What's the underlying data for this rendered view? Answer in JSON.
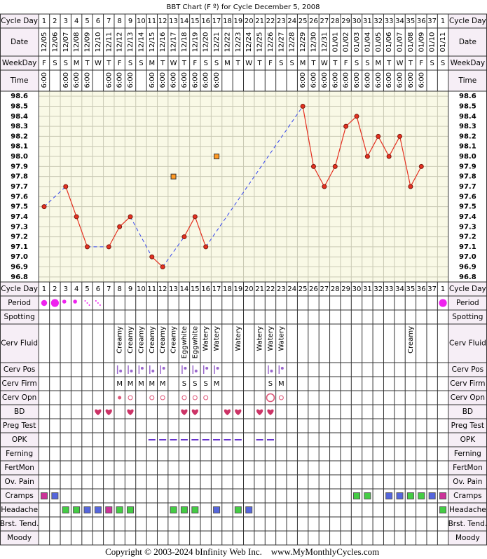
{
  "title": "BBT Chart (F º) for Cycle December 5, 2008",
  "row_labels": {
    "cycle_day": "Cycle Day",
    "date": "Date",
    "weekday": "WeekDay",
    "time": "Time",
    "period": "Period",
    "spotting": "Spotting",
    "cerv_fluid": "Cerv Fluid",
    "cerv_pos": "Cerv Pos",
    "cerv_firm": "Cerv Firm",
    "cerv_opn": "Cerv Opn",
    "bd": "BD",
    "preg_test": "Preg Test",
    "opk": "OPK",
    "ferning": "Ferning",
    "fertmon": "FertMon",
    "ov_pain": "Ov. Pain",
    "cramps": "Cramps",
    "headache": "Headache",
    "brst_tend": "Brst. Tend.",
    "moody": "Moody"
  },
  "cycle_days": [
    1,
    2,
    3,
    4,
    5,
    6,
    7,
    8,
    9,
    10,
    11,
    12,
    13,
    14,
    15,
    16,
    17,
    18,
    19,
    20,
    21,
    22,
    23,
    24,
    25,
    26,
    27,
    28,
    29,
    30,
    31,
    32,
    33,
    34,
    35,
    36,
    37,
    1
  ],
  "dates": [
    "12/05",
    "12/06",
    "12/07",
    "12/08",
    "12/09",
    "12/10",
    "12/11",
    "12/12",
    "12/13",
    "12/14",
    "12/15",
    "12/16",
    "12/17",
    "12/18",
    "12/19",
    "12/20",
    "12/21",
    "12/22",
    "12/23",
    "12/24",
    "12/25",
    "12/26",
    "12/27",
    "12/28",
    "12/29",
    "12/30",
    "12/31",
    "01/01",
    "01/02",
    "01/03",
    "01/04",
    "01/05",
    "01/06",
    "01/07",
    "01/08",
    "01/09",
    "01/10",
    "01/11"
  ],
  "weekdays": [
    "F",
    "S",
    "S",
    "M",
    "T",
    "W",
    "T",
    "F",
    "S",
    "S",
    "M",
    "T",
    "W",
    "T",
    "F",
    "S",
    "S",
    "M",
    "T",
    "W",
    "T",
    "F",
    "S",
    "S",
    "M",
    "T",
    "W",
    "T",
    "F",
    "S",
    "S",
    "M",
    "T",
    "W",
    "T",
    "F",
    "S",
    "S"
  ],
  "times": [
    "6:00",
    null,
    "6:00",
    "6:00",
    "6:00",
    null,
    "6:00",
    "6:00",
    "6:00",
    null,
    "6:00",
    "6:00",
    "6:00",
    "6:00",
    "6:00",
    "6:00",
    "6:00",
    null,
    null,
    null,
    null,
    null,
    null,
    null,
    "6:00",
    "6:00",
    "6:00",
    "6:00",
    "6:00",
    "6:00",
    "6:00",
    "6:00",
    "6:00",
    "6:00",
    "6:00",
    "6:00",
    null,
    null
  ],
  "chart_data": {
    "type": "line",
    "ylim": [
      96.75,
      98.65
    ],
    "grid": true,
    "yticks": [
      98.6,
      98.5,
      98.4,
      98.3,
      98.2,
      98.1,
      {
        "value": 98,
        "label": "98.0"
      },
      97.9,
      97.8,
      97.7,
      97.6,
      97.5,
      97.4,
      97.3,
      97.2,
      97.1,
      {
        "value": 97,
        "label": "97.0"
      },
      96.9,
      96.8
    ],
    "series": [
      {
        "color": "#e53020",
        "values": [
          97.5,
          null,
          97.7,
          97.4,
          97.1,
          null,
          97.1,
          97.3,
          97.4,
          null,
          97.0,
          96.9,
          null,
          97.2,
          97.4,
          97.1,
          null,
          null,
          null,
          null,
          null,
          null,
          null,
          null,
          98.5,
          97.9,
          97.7,
          97.9,
          98.3,
          98.4,
          98.0,
          98.2,
          98.0,
          98.2,
          97.7,
          97.9,
          null,
          null
        ]
      },
      {
        "color": "#ff9922",
        "values": [
          null,
          null,
          null,
          null,
          null,
          null,
          null,
          null,
          null,
          null,
          null,
          null,
          97.8,
          null,
          null,
          null,
          98.0,
          null,
          null,
          null,
          null,
          null,
          null,
          null,
          null,
          null,
          null,
          null,
          null,
          null,
          null,
          null,
          null,
          null,
          null,
          null,
          null,
          null
        ]
      }
    ]
  },
  "period": [
    3,
    4,
    2,
    2,
    1,
    1,
    null,
    null,
    null,
    null,
    null,
    null,
    null,
    null,
    null,
    null,
    null,
    null,
    null,
    null,
    null,
    null,
    null,
    null,
    null,
    null,
    null,
    null,
    null,
    null,
    null,
    null,
    null,
    null,
    null,
    null,
    null,
    4
  ],
  "cerv_fluid": [
    null,
    null,
    null,
    null,
    null,
    null,
    null,
    "Creamy",
    "Creamy",
    "Creamy",
    "Creamy",
    "Creamy",
    "Creamy",
    "Eggwhite",
    "Eggwhite",
    "Watery",
    "Watery",
    null,
    "Watery",
    null,
    "Watery",
    "Watery",
    "Watery",
    null,
    null,
    null,
    null,
    null,
    null,
    null,
    null,
    null,
    null,
    null,
    "Creamy",
    null,
    null,
    null
  ],
  "cerv_pos": [
    null,
    null,
    null,
    null,
    null,
    null,
    null,
    1,
    1,
    2,
    1,
    2,
    null,
    2,
    1,
    2,
    2,
    null,
    null,
    null,
    null,
    1,
    2,
    null,
    null,
    null,
    null,
    null,
    null,
    null,
    null,
    null,
    null,
    null,
    null,
    null,
    null,
    null
  ],
  "cerv_firm": [
    null,
    null,
    null,
    null,
    null,
    null,
    null,
    "M",
    "M",
    "M",
    "M",
    "M",
    null,
    "S",
    "S",
    "S",
    "M",
    null,
    null,
    null,
    null,
    "S",
    "M",
    null,
    null,
    null,
    null,
    null,
    null,
    null,
    null,
    null,
    null,
    null,
    null,
    null,
    null,
    null
  ],
  "cerv_opn": [
    null,
    null,
    null,
    null,
    null,
    null,
    null,
    1,
    2,
    null,
    2,
    2,
    null,
    2,
    2,
    2,
    null,
    null,
    null,
    null,
    null,
    3,
    2,
    null,
    null,
    null,
    null,
    null,
    null,
    null,
    null,
    null,
    null,
    null,
    null,
    null,
    null,
    null
  ],
  "bd": [
    null,
    null,
    null,
    null,
    null,
    1,
    1,
    null,
    1,
    null,
    null,
    null,
    null,
    1,
    1,
    null,
    null,
    1,
    1,
    null,
    1,
    1,
    null,
    null,
    null,
    null,
    null,
    null,
    null,
    null,
    null,
    null,
    null,
    null,
    null,
    null,
    null,
    null
  ],
  "opk": [
    null,
    null,
    null,
    null,
    null,
    null,
    null,
    null,
    null,
    null,
    1,
    1,
    1,
    1,
    1,
    1,
    1,
    1,
    1,
    null,
    1,
    1,
    null,
    null,
    null,
    null,
    null,
    null,
    null,
    null,
    null,
    null,
    null,
    null,
    null,
    null,
    null,
    null
  ],
  "severity_colors": [
    "#44cc44",
    "#5566dd",
    "#cc3399"
  ],
  "cramps": [
    3,
    2,
    null,
    null,
    null,
    null,
    null,
    null,
    null,
    null,
    null,
    null,
    null,
    null,
    null,
    null,
    null,
    null,
    null,
    null,
    null,
    null,
    null,
    null,
    null,
    null,
    null,
    null,
    null,
    1,
    1,
    null,
    2,
    2,
    1,
    1,
    2,
    3
  ],
  "headache": [
    null,
    null,
    1,
    1,
    2,
    2,
    3,
    1,
    1,
    null,
    null,
    null,
    1,
    1,
    1,
    null,
    2,
    null,
    1,
    2,
    null,
    null,
    null,
    null,
    null,
    null,
    null,
    null,
    null,
    null,
    null,
    null,
    null,
    null,
    null,
    null,
    null,
    1
  ],
  "footer": {
    "copyright": "Copyright © 2003-2024 bInfinity Web Inc.",
    "site": "www.MyMonthlyCycles.com"
  }
}
